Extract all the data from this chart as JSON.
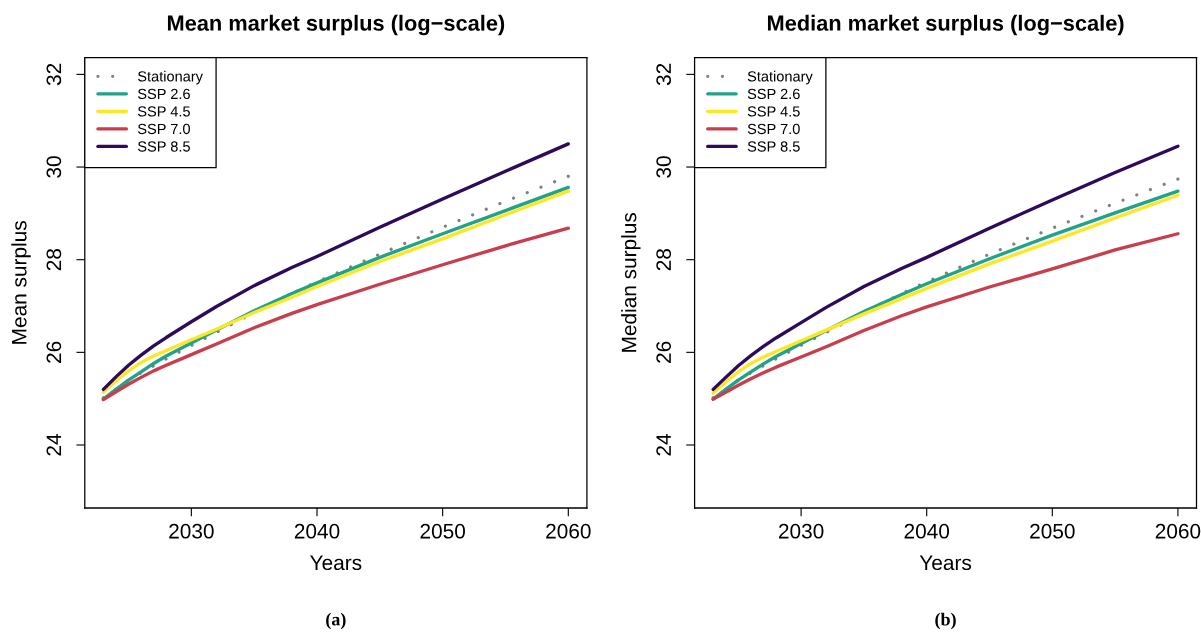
{
  "chart_data": [
    {
      "type": "line",
      "title": "Mean market surplus (log−scale)",
      "xlabel": "Years",
      "ylabel": "Mean surplus",
      "x": [
        2023,
        2024,
        2025,
        2026,
        2027,
        2028,
        2030,
        2032,
        2035,
        2038,
        2040,
        2045,
        2050,
        2055,
        2060
      ],
      "series": [
        {
          "name": "Stationary",
          "color": "#808080",
          "line_style": "dotted",
          "values": [
            25.02,
            25.2,
            25.4,
            25.56,
            25.71,
            25.86,
            26.15,
            26.43,
            26.86,
            27.27,
            27.52,
            28.12,
            28.7,
            29.26,
            29.8
          ]
        },
        {
          "name": "SSP 2.6",
          "color": "#20A387",
          "line_style": "solid",
          "values": [
            24.99,
            25.2,
            25.4,
            25.58,
            25.76,
            25.92,
            26.2,
            26.48,
            26.9,
            27.27,
            27.5,
            28.05,
            28.56,
            29.06,
            29.56
          ]
        },
        {
          "name": "SSP 4.5",
          "color": "#FDE725",
          "line_style": "solid",
          "values": [
            25.14,
            25.38,
            25.6,
            25.78,
            25.92,
            26.04,
            26.27,
            26.5,
            26.86,
            27.19,
            27.42,
            27.96,
            28.45,
            28.97,
            29.48
          ]
        },
        {
          "name": "SSP 7.0",
          "color": "#C73E4C",
          "line_style": "solid",
          "values": [
            24.98,
            25.15,
            25.31,
            25.46,
            25.6,
            25.72,
            25.95,
            26.18,
            26.53,
            26.84,
            27.03,
            27.47,
            27.89,
            28.3,
            28.68
          ]
        },
        {
          "name": "SSP 8.5",
          "color": "#2D0B5A",
          "line_style": "solid",
          "values": [
            25.2,
            25.47,
            25.72,
            25.94,
            26.14,
            26.32,
            26.66,
            26.99,
            27.44,
            27.83,
            28.07,
            28.7,
            29.31,
            29.91,
            30.5
          ]
        }
      ],
      "xlim": [
        2021.52,
        2061.48
      ],
      "xticks": [
        2030,
        2040,
        2050,
        2060
      ],
      "ylim": [
        22.64,
        32.36
      ],
      "yticks": [
        24,
        26,
        28,
        30,
        32
      ],
      "legend": "top left",
      "grid": false,
      "annotations": [
        "(a)"
      ]
    },
    {
      "type": "line",
      "title": "Median market surplus (log−scale)",
      "xlabel": "Years",
      "ylabel": "Median surplus",
      "x": [
        2023,
        2024,
        2025,
        2026,
        2027,
        2028,
        2030,
        2032,
        2035,
        2038,
        2040,
        2045,
        2050,
        2055,
        2060
      ],
      "series": [
        {
          "name": "Stationary",
          "color": "#808080",
          "line_style": "dotted",
          "values": [
            25.02,
            25.2,
            25.4,
            25.56,
            25.71,
            25.86,
            26.15,
            26.43,
            26.86,
            27.27,
            27.52,
            28.12,
            28.68,
            29.22,
            29.74
          ]
        },
        {
          "name": "SSP 2.6",
          "color": "#20A387",
          "line_style": "solid",
          "values": [
            24.99,
            25.2,
            25.4,
            25.58,
            25.75,
            25.91,
            26.19,
            26.47,
            26.88,
            27.25,
            27.48,
            28.02,
            28.53,
            29.01,
            29.48
          ]
        },
        {
          "name": "SSP 4.5",
          "color": "#FDE725",
          "line_style": "solid",
          "values": [
            25.12,
            25.36,
            25.58,
            25.76,
            25.9,
            26.02,
            26.25,
            26.48,
            26.83,
            27.16,
            27.38,
            27.91,
            28.4,
            28.9,
            29.39
          ]
        },
        {
          "name": "SSP 7.0",
          "color": "#C73E4C",
          "line_style": "solid",
          "values": [
            24.99,
            25.14,
            25.29,
            25.43,
            25.56,
            25.68,
            25.9,
            26.12,
            26.47,
            26.79,
            26.98,
            27.41,
            27.8,
            28.21,
            28.56
          ]
        },
        {
          "name": "SSP 8.5",
          "color": "#2D0B5A",
          "line_style": "solid",
          "values": [
            25.2,
            25.46,
            25.71,
            25.93,
            26.13,
            26.31,
            26.64,
            26.97,
            27.42,
            27.81,
            28.05,
            28.68,
            29.29,
            29.88,
            30.45
          ]
        }
      ],
      "xlim": [
        2021.52,
        2061.48
      ],
      "xticks": [
        2030,
        2040,
        2050,
        2060
      ],
      "ylim": [
        22.64,
        32.36
      ],
      "yticks": [
        24,
        26,
        28,
        30,
        32
      ],
      "legend": "top left",
      "grid": false,
      "annotations": [
        "(b)"
      ]
    }
  ]
}
